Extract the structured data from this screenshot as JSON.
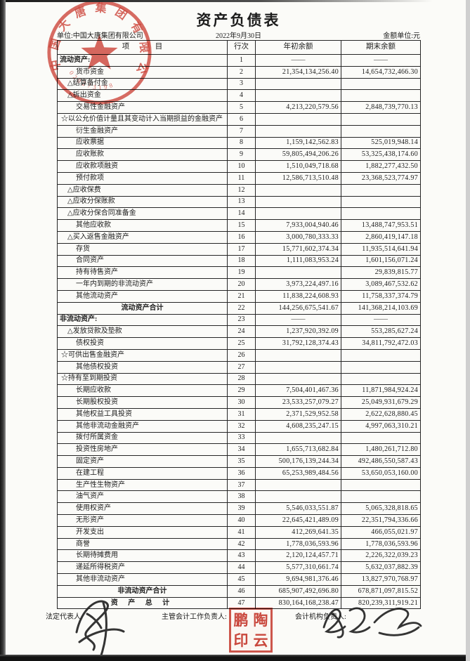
{
  "page": {
    "title": "资产负债表",
    "unit_line": "单位:中国大唐集团有限公司",
    "date": "2022年9月30日",
    "amount_unit": "金额单位:元"
  },
  "table": {
    "headers": {
      "item": "项 目",
      "line_no": "行次",
      "begin": "年初余额",
      "end": "期末余额"
    },
    "rows": [
      {
        "l": "流动资产:",
        "n": "1",
        "b": "——",
        "e": "——",
        "t": "s"
      },
      {
        "l": "货币资金",
        "n": "2",
        "b": "21,354,134,256.40",
        "e": "14,654,732,466.30",
        "t": "i"
      },
      {
        "l": "△结算备付金",
        "n": "3",
        "b": "",
        "e": "",
        "t": "i"
      },
      {
        "l": "△拆出资金",
        "n": "4",
        "b": "",
        "e": "",
        "t": "i"
      },
      {
        "l": "交易性金融资产",
        "n": "5",
        "b": "4,213,220,579.56",
        "e": "2,848,739,770.13",
        "t": "i"
      },
      {
        "l": "☆以公允价值计量且其变动计入当期损益的金融资产",
        "n": "6",
        "b": "",
        "e": "",
        "t": "i"
      },
      {
        "l": "衍生金融资产",
        "n": "7",
        "b": "",
        "e": "",
        "t": "i"
      },
      {
        "l": "应收票据",
        "n": "8",
        "b": "1,159,142,562.83",
        "e": "525,019,948.14",
        "t": "i"
      },
      {
        "l": "应收账款",
        "n": "9",
        "b": "59,805,494,206.26",
        "e": "53,325,438,174.60",
        "t": "i"
      },
      {
        "l": "应收款项融资",
        "n": "10",
        "b": "1,510,049,718.68",
        "e": "1,882,277,432.50",
        "t": "i"
      },
      {
        "l": "预付款项",
        "n": "11",
        "b": "12,586,713,510.48",
        "e": "23,368,523,774.97",
        "t": "i"
      },
      {
        "l": "△应收保费",
        "n": "12",
        "b": "",
        "e": "",
        "t": "i"
      },
      {
        "l": "△应收分保账款",
        "n": "13",
        "b": "",
        "e": "",
        "t": "i"
      },
      {
        "l": "△应收分保合同准备金",
        "n": "14",
        "b": "",
        "e": "",
        "t": "i"
      },
      {
        "l": "其他应收款",
        "n": "15",
        "b": "7,933,004,940.46",
        "e": "13,488,747,953.51",
        "t": "i"
      },
      {
        "l": "△买入返售金融资产",
        "n": "16",
        "b": "3,000,780,333.33",
        "e": "2,860,419,147.18",
        "t": "i"
      },
      {
        "l": "存货",
        "n": "17",
        "b": "15,771,602,374.34",
        "e": "11,935,514,641.94",
        "t": "i"
      },
      {
        "l": "合同资产",
        "n": "18",
        "b": "1,111,083,953.24",
        "e": "1,601,156,071.24",
        "t": "i"
      },
      {
        "l": "持有待售资产",
        "n": "19",
        "b": "",
        "e": "29,839,815.77",
        "t": "i"
      },
      {
        "l": "一年内到期的非流动资产",
        "n": "20",
        "b": "3,973,224,497.16",
        "e": "3,089,467,532.62",
        "t": "i"
      },
      {
        "l": "其他流动资产",
        "n": "21",
        "b": "11,838,224,608.93",
        "e": "11,758,337,374.79",
        "t": "i"
      },
      {
        "l": "流动资产合计",
        "n": "22",
        "b": "144,256,675,541.67",
        "e": "141,368,214,103.69",
        "t": "t"
      },
      {
        "l": "非流动资产:",
        "n": "23",
        "b": "——",
        "e": "——",
        "t": "s"
      },
      {
        "l": "△发放贷款及垫款",
        "n": "24",
        "b": "1,237,920,392.09",
        "e": "553,285,627.24",
        "t": "i"
      },
      {
        "l": "债权投资",
        "n": "25",
        "b": "31,792,128,374.43",
        "e": "34,811,792,472.03",
        "t": "i"
      },
      {
        "l": "☆可供出售金融资产",
        "n": "26",
        "b": "",
        "e": "",
        "t": "i"
      },
      {
        "l": "其他债权投资",
        "n": "27",
        "b": "",
        "e": "",
        "t": "i"
      },
      {
        "l": "☆持有至到期投资",
        "n": "28",
        "b": "",
        "e": "",
        "t": "i"
      },
      {
        "l": "长期应收款",
        "n": "29",
        "b": "7,504,401,467.36",
        "e": "11,871,984,924.24",
        "t": "i"
      },
      {
        "l": "长期股权投资",
        "n": "30",
        "b": "23,533,257,079.27",
        "e": "25,049,931,679.29",
        "t": "i"
      },
      {
        "l": "其他权益工具投资",
        "n": "31",
        "b": "2,371,529,952.58",
        "e": "2,622,628,880.45",
        "t": "i"
      },
      {
        "l": "其他非流动金融资产",
        "n": "32",
        "b": "4,608,235,247.15",
        "e": "4,997,063,310.21",
        "t": "i"
      },
      {
        "l": "拨付所属资金",
        "n": "33",
        "b": "",
        "e": "",
        "t": "i"
      },
      {
        "l": "投资性房地产",
        "n": "34",
        "b": "1,655,713,682.84",
        "e": "1,480,261,712.80",
        "t": "i"
      },
      {
        "l": "固定资产",
        "n": "35",
        "b": "500,176,139,244.34",
        "e": "492,486,550,587.43",
        "t": "i"
      },
      {
        "l": "在建工程",
        "n": "36",
        "b": "65,253,989,484.56",
        "e": "53,650,053,160.00",
        "t": "i"
      },
      {
        "l": "生产性生物资产",
        "n": "37",
        "b": "",
        "e": "",
        "t": "i"
      },
      {
        "l": "油气资产",
        "n": "38",
        "b": "",
        "e": "",
        "t": "i"
      },
      {
        "l": "使用权资产",
        "n": "39",
        "b": "5,546,033,551.87",
        "e": "5,065,328,818.65",
        "t": "i"
      },
      {
        "l": "无形资产",
        "n": "40",
        "b": "22,645,421,489.09",
        "e": "22,351,794,336.66",
        "t": "i"
      },
      {
        "l": "开发支出",
        "n": "41",
        "b": "412,269,641.35",
        "e": "466,055,021.97",
        "t": "i"
      },
      {
        "l": "商誉",
        "n": "42",
        "b": "1,778,036,593.96",
        "e": "1,778,036,593.96",
        "t": "i"
      },
      {
        "l": "长期待摊费用",
        "n": "43",
        "b": "2,120,124,457.71",
        "e": "2,226,322,039.23",
        "t": "i"
      },
      {
        "l": "递延所得税资产",
        "n": "44",
        "b": "5,577,310,661.74",
        "e": "5,632,037,882.39",
        "t": "i"
      },
      {
        "l": "其他非流动资产",
        "n": "45",
        "b": "9,694,981,376.46",
        "e": "13,827,970,768.97",
        "t": "i"
      },
      {
        "l": "非流动资产合计",
        "n": "46",
        "b": "685,907,492,696.80",
        "e": "678,871,097,815.52",
        "t": "t"
      },
      {
        "l": "资 产 总 计",
        "n": "47",
        "b": "830,164,168,238.47",
        "e": "820,239,311,919.21",
        "t": "g"
      }
    ]
  },
  "footer": {
    "legal_rep_label": "法定代表人",
    "chief_accountant_label": "主管会计工作负责人:",
    "accounting_org_label": "会计机构负责人:"
  },
  "seals": {
    "company": {
      "arc_text": "中国大唐集团有限公司",
      "number": "020273198",
      "color": "#d0443a"
    },
    "square": {
      "c1": "鹏",
      "c2": "陶",
      "c3": "印",
      "c4": "云",
      "color": "#c9392e"
    }
  }
}
